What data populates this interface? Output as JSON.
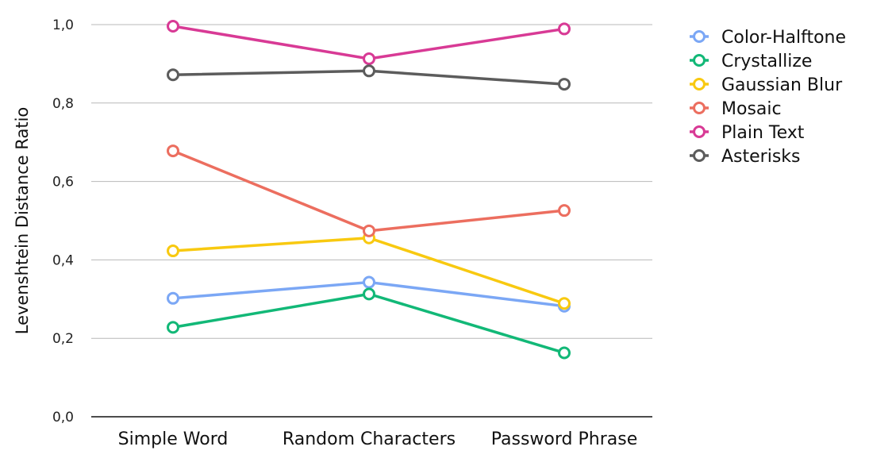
{
  "chart_data": {
    "type": "line",
    "title": "",
    "xlabel": "",
    "ylabel": "Levenshtein Distance Ratio",
    "categories": [
      "Simple Word",
      "Random Characters",
      "Password Phrase"
    ],
    "ylim": [
      0,
      1
    ],
    "yticks": [
      "0,0",
      "0,2",
      "0,4",
      "0,6",
      "0,8",
      "1,0"
    ],
    "grid": true,
    "legend_position": "right",
    "series": [
      {
        "name": "Color-Halftone",
        "color": "#7ba7f5",
        "values": [
          0.302,
          0.343,
          0.282
        ]
      },
      {
        "name": "Crystallize",
        "color": "#12b877",
        "values": [
          0.228,
          0.313,
          0.163
        ]
      },
      {
        "name": "Gaussian Blur",
        "color": "#f8c910",
        "values": [
          0.423,
          0.456,
          0.289
        ]
      },
      {
        "name": "Mosaic",
        "color": "#ec6e5f",
        "values": [
          0.678,
          0.474,
          0.526
        ]
      },
      {
        "name": "Plain Text",
        "color": "#d83a95",
        "values": [
          0.996,
          0.913,
          0.989
        ]
      },
      {
        "name": "Asterisks",
        "color": "#5c5c5c",
        "values": [
          0.872,
          0.882,
          0.848
        ]
      }
    ]
  }
}
